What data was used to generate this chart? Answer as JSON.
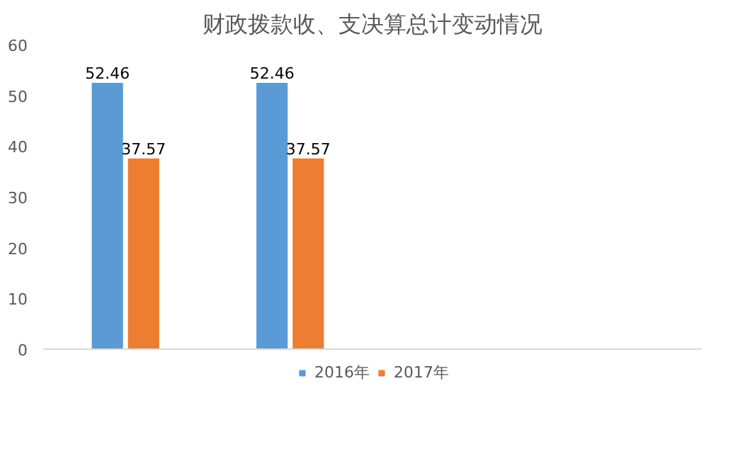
{
  "chart_data": {
    "type": "bar",
    "title": "财政拨款收、支决算总计变动情况",
    "categories": [
      null,
      null,
      null,
      null
    ],
    "series": [
      {
        "name": "2016年",
        "color": "#5b9bd5",
        "values": [
          52.46,
          52.46,
          null,
          null
        ]
      },
      {
        "name": "2017年",
        "color": "#ed7d31",
        "values": [
          37.57,
          37.57,
          null,
          null
        ]
      }
    ],
    "ylim": [
      0,
      60
    ],
    "yticks": [
      0,
      10,
      20,
      30,
      40,
      50,
      60
    ],
    "data_labels": true,
    "legend": "bottom",
    "tick_labels": "y",
    "grid": false
  }
}
